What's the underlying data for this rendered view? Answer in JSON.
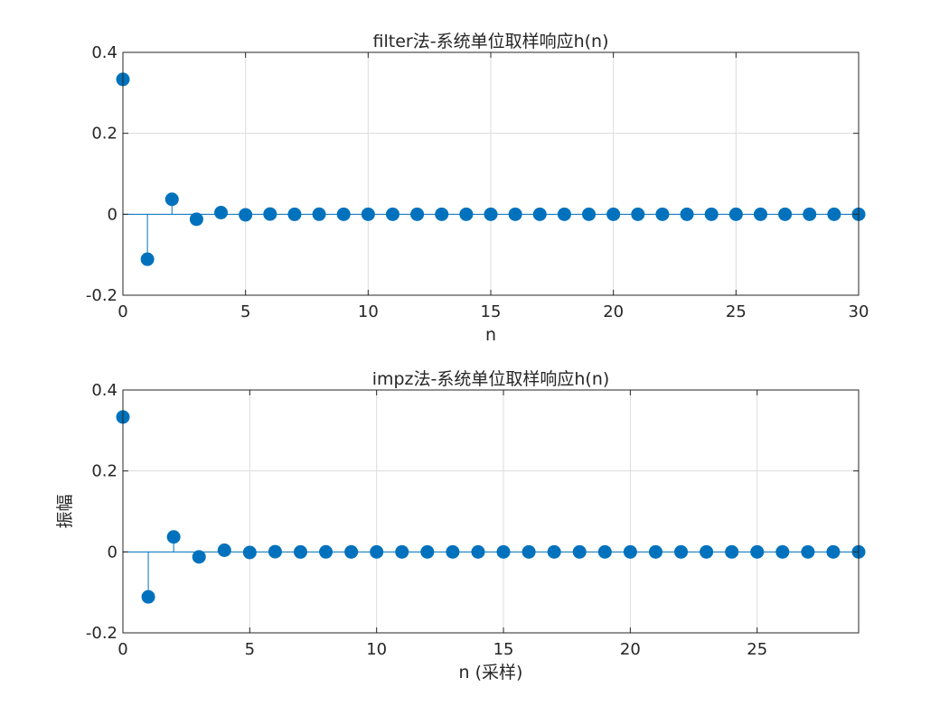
{
  "colors": {
    "stem": "#0072BD",
    "axis": "#262626",
    "grid": "#DCDCDC",
    "background": "#FFFFFF"
  },
  "chart_data": [
    {
      "type": "stem",
      "title": "filter法-系统单位取样响应h(n)",
      "xlabel": "n",
      "ylabel": "",
      "xlim": [
        0,
        30
      ],
      "ylim": [
        -0.2,
        0.4
      ],
      "xticks": [
        0,
        5,
        10,
        15,
        20,
        25,
        30
      ],
      "xtick_labels": [
        "0",
        "5",
        "10",
        "15",
        "20",
        "25",
        "30"
      ],
      "yticks": [
        -0.2,
        0,
        0.2,
        0.4
      ],
      "ytick_labels": [
        "-0.2",
        "0",
        "0.2",
        "0.4"
      ],
      "grid": true,
      "x": [
        0,
        1,
        2,
        3,
        4,
        5,
        6,
        7,
        8,
        9,
        10,
        11,
        12,
        13,
        14,
        15,
        16,
        17,
        18,
        19,
        20,
        21,
        22,
        23,
        24,
        25,
        26,
        27,
        28,
        29,
        30
      ],
      "y": [
        0.3333,
        -0.1111,
        0.037,
        -0.0123,
        0.0041,
        -0.0014,
        0.0005,
        -0.0002,
        0.0001,
        0,
        0,
        0,
        0,
        0,
        0,
        0,
        0,
        0,
        0,
        0,
        0,
        0,
        0,
        0,
        0,
        0,
        0,
        0,
        0,
        0,
        0
      ]
    },
    {
      "type": "stem",
      "title": "impz法-系统单位取样响应h(n)",
      "xlabel": "n (采样)",
      "ylabel": "振幅",
      "xlim": [
        0,
        29
      ],
      "ylim": [
        -0.2,
        0.4
      ],
      "xticks": [
        0,
        5,
        10,
        15,
        20,
        25
      ],
      "xtick_labels": [
        "0",
        "5",
        "10",
        "15",
        "20",
        "25"
      ],
      "yticks": [
        -0.2,
        0,
        0.2,
        0.4
      ],
      "ytick_labels": [
        "-0.2",
        "0",
        "0.2",
        "0.4"
      ],
      "grid": true,
      "x": [
        0,
        1,
        2,
        3,
        4,
        5,
        6,
        7,
        8,
        9,
        10,
        11,
        12,
        13,
        14,
        15,
        16,
        17,
        18,
        19,
        20,
        21,
        22,
        23,
        24,
        25,
        26,
        27,
        28,
        29
      ],
      "y": [
        0.3333,
        -0.1111,
        0.037,
        -0.0123,
        0.0041,
        -0.0014,
        0.0005,
        -0.0002,
        0.0001,
        0,
        0,
        0,
        0,
        0,
        0,
        0,
        0,
        0,
        0,
        0,
        0,
        0,
        0,
        0,
        0,
        0,
        0,
        0,
        0,
        0
      ]
    }
  ]
}
